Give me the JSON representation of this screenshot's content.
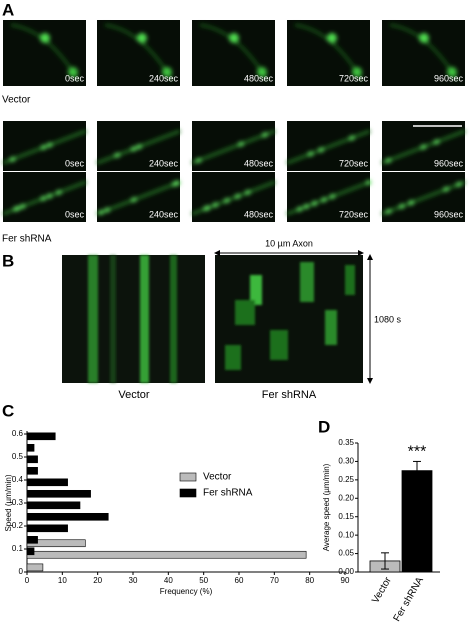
{
  "figure": {
    "panel_labels": [
      "A",
      "B",
      "C",
      "D"
    ],
    "panel_a": {
      "times": [
        "0sec",
        "240sec",
        "480sec",
        "720sec",
        "960sec"
      ],
      "row_labels": [
        "Vector",
        "Fer shRNA"
      ]
    },
    "panel_b": {
      "scale_x": "10 µm Axon",
      "scale_y": "1080 s",
      "labels": [
        "Vector",
        "Fer shRNA"
      ]
    }
  },
  "chart_data": [
    {
      "type": "barh",
      "xlabel": "Frequency (%)",
      "ylabel": "Speed (µm/min)",
      "xlim": [
        0,
        90
      ],
      "xticks": [
        0,
        10,
        20,
        30,
        40,
        50,
        60,
        70,
        80,
        90
      ],
      "ylim": [
        0,
        0.6
      ],
      "yticks": [
        0,
        0.1,
        0.2,
        0.3,
        0.4,
        0.5,
        0.6
      ],
      "series": [
        {
          "name": "Vector",
          "color": "#bbbbbb",
          "y": [
            0.125,
            0.075,
            0.02
          ],
          "values": [
            16.5,
            79,
            4.5
          ]
        },
        {
          "name": "Fer shRNA",
          "color": "#000000",
          "y": [
            0.59,
            0.54,
            0.49,
            0.44,
            0.39,
            0.34,
            0.29,
            0.24,
            0.19,
            0.14,
            0.09
          ],
          "values": [
            8,
            2,
            3,
            3,
            11.5,
            18,
            15,
            23,
            11.5,
            3,
            2
          ]
        }
      ]
    },
    {
      "type": "bar",
      "ylabel": "Average speed (µm/min)",
      "categories": [
        "Vector",
        "Fer shRNA"
      ],
      "values": [
        0.03,
        0.275
      ],
      "errors": [
        0.022,
        0.025
      ],
      "colors": [
        "#bbbbbb",
        "#000000"
      ],
      "annotation": "***",
      "ylim": [
        0,
        0.35
      ],
      "yticks": [
        {
          "value": 0,
          "label": "0.00"
        },
        {
          "value": 0.05,
          "label": "0.05"
        },
        {
          "value": 0.1,
          "label": "0.10"
        },
        {
          "value": 0.15,
          "label": "0.15"
        },
        {
          "value": 0.2,
          "label": "0.20"
        },
        {
          "value": 0.25,
          "label": "0.25"
        },
        {
          "value": 0.3,
          "label": "0.30"
        },
        {
          "value": 0.35,
          "label": "0.35"
        }
      ]
    }
  ]
}
